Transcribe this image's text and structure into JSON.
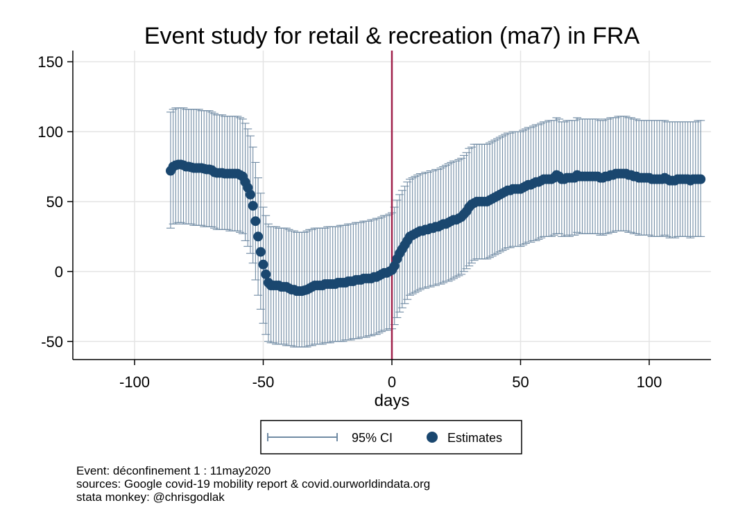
{
  "chart_data": {
    "type": "scatter",
    "title": "Event study for retail & recreation (ma7) in FRA",
    "xlabel": "days",
    "ylabel": "",
    "xlim": [
      -124,
      124
    ],
    "ylim": [
      -63,
      158
    ],
    "xticks": [
      -100,
      -50,
      0,
      50,
      100
    ],
    "yticks": [
      -50,
      0,
      50,
      100,
      150
    ],
    "xtick_labels": [
      "-100",
      "-50",
      "0",
      "50",
      "100"
    ],
    "ytick_labels": [
      "-50",
      "0",
      "50",
      "100",
      "150"
    ],
    "grid": true,
    "event_line_x": 0,
    "legend_position": "bottom",
    "colors": {
      "estimates": "#1a476f",
      "ci": "#6f8aa3",
      "event_line": "#a0204a",
      "grid": "#e4e4e4"
    },
    "series": [
      {
        "name": "95% CI",
        "type": "rcap"
      },
      {
        "name": "Estimates",
        "type": "scatter"
      }
    ],
    "points": [
      {
        "x": -86,
        "y": 72,
        "lo": 31,
        "hi": 114
      },
      {
        "x": -85,
        "y": 75,
        "lo": 34,
        "hi": 116
      },
      {
        "x": -84,
        "y": 76,
        "lo": 34,
        "hi": 117
      },
      {
        "x": -83,
        "y": 76.5,
        "lo": 35,
        "hi": 117
      },
      {
        "x": -82,
        "y": 76.5,
        "lo": 35,
        "hi": 117
      },
      {
        "x": -81,
        "y": 76,
        "lo": 34,
        "hi": 117
      },
      {
        "x": -80,
        "y": 75,
        "lo": 34,
        "hi": 116
      },
      {
        "x": -79,
        "y": 75,
        "lo": 34,
        "hi": 116
      },
      {
        "x": -78,
        "y": 74.5,
        "lo": 34,
        "hi": 116
      },
      {
        "x": -77,
        "y": 74,
        "lo": 33,
        "hi": 116
      },
      {
        "x": -76,
        "y": 74,
        "lo": 33,
        "hi": 116
      },
      {
        "x": -75,
        "y": 74,
        "lo": 33,
        "hi": 116
      },
      {
        "x": -74,
        "y": 74,
        "lo": 33,
        "hi": 115
      },
      {
        "x": -73,
        "y": 73.5,
        "lo": 32,
        "hi": 115
      },
      {
        "x": -72,
        "y": 73,
        "lo": 32,
        "hi": 115
      },
      {
        "x": -71,
        "y": 73,
        "lo": 32,
        "hi": 115
      },
      {
        "x": -70,
        "y": 72.5,
        "lo": 32,
        "hi": 114
      },
      {
        "x": -69,
        "y": 71,
        "lo": 31,
        "hi": 113
      },
      {
        "x": -68,
        "y": 70.5,
        "lo": 30,
        "hi": 112
      },
      {
        "x": -67,
        "y": 70.5,
        "lo": 30,
        "hi": 112
      },
      {
        "x": -66,
        "y": 70.5,
        "lo": 30,
        "hi": 112
      },
      {
        "x": -65,
        "y": 70,
        "lo": 30,
        "hi": 111
      },
      {
        "x": -64,
        "y": 70,
        "lo": 30,
        "hi": 111
      },
      {
        "x": -63,
        "y": 70,
        "lo": 29,
        "hi": 111
      },
      {
        "x": -62,
        "y": 70,
        "lo": 29,
        "hi": 111
      },
      {
        "x": -61,
        "y": 70,
        "lo": 29,
        "hi": 111
      },
      {
        "x": -60,
        "y": 70,
        "lo": 29,
        "hi": 111
      },
      {
        "x": -59,
        "y": 69,
        "lo": 28,
        "hi": 110
      },
      {
        "x": -58,
        "y": 68,
        "lo": 27,
        "hi": 109
      },
      {
        "x": -57,
        "y": 64,
        "lo": 22,
        "hi": 106
      },
      {
        "x": -56,
        "y": 60,
        "lo": 18,
        "hi": 102
      },
      {
        "x": -55,
        "y": 55,
        "lo": 13,
        "hi": 97
      },
      {
        "x": -54,
        "y": 47,
        "lo": 6,
        "hi": 89
      },
      {
        "x": -53,
        "y": 36,
        "lo": -6,
        "hi": 78
      },
      {
        "x": -52,
        "y": 25,
        "lo": -17,
        "hi": 67
      },
      {
        "x": -51,
        "y": 14,
        "lo": -27,
        "hi": 56
      },
      {
        "x": -50,
        "y": 5,
        "lo": -37,
        "hi": 46
      },
      {
        "x": -49,
        "y": -2,
        "lo": -45,
        "hi": 40
      },
      {
        "x": -48,
        "y": -8,
        "lo": -50,
        "hi": 34
      },
      {
        "x": -47,
        "y": -10,
        "lo": -51,
        "hi": 32
      },
      {
        "x": -46,
        "y": -10,
        "lo": -51,
        "hi": 32
      },
      {
        "x": -45,
        "y": -10,
        "lo": -52,
        "hi": 32
      },
      {
        "x": -44,
        "y": -10,
        "lo": -52,
        "hi": 31
      },
      {
        "x": -43,
        "y": -11,
        "lo": -52,
        "hi": 31
      },
      {
        "x": -42,
        "y": -11,
        "lo": -52,
        "hi": 31
      },
      {
        "x": -41,
        "y": -11,
        "lo": -53,
        "hi": 31
      },
      {
        "x": -40,
        "y": -12,
        "lo": -53,
        "hi": 30
      },
      {
        "x": -39,
        "y": -13,
        "lo": -53,
        "hi": 29
      },
      {
        "x": -38,
        "y": -13,
        "lo": -54,
        "hi": 29
      },
      {
        "x": -37,
        "y": -14,
        "lo": -54,
        "hi": 28
      },
      {
        "x": -36,
        "y": -14,
        "lo": -54,
        "hi": 28
      },
      {
        "x": -35,
        "y": -14,
        "lo": -54,
        "hi": 28
      },
      {
        "x": -34,
        "y": -13.5,
        "lo": -54,
        "hi": 28
      },
      {
        "x": -33,
        "y": -13,
        "lo": -54,
        "hi": 29
      },
      {
        "x": -32,
        "y": -12,
        "lo": -53,
        "hi": 30
      },
      {
        "x": -31,
        "y": -11,
        "lo": -53,
        "hi": 30
      },
      {
        "x": -30,
        "y": -10,
        "lo": -52,
        "hi": 31
      },
      {
        "x": -29,
        "y": -10,
        "lo": -52,
        "hi": 31
      },
      {
        "x": -28,
        "y": -10,
        "lo": -52,
        "hi": 31
      },
      {
        "x": -27,
        "y": -10,
        "lo": -52,
        "hi": 31
      },
      {
        "x": -26,
        "y": -9,
        "lo": -51,
        "hi": 31
      },
      {
        "x": -25,
        "y": -9,
        "lo": -51,
        "hi": 32
      },
      {
        "x": -24,
        "y": -9,
        "lo": -51,
        "hi": 32
      },
      {
        "x": -23,
        "y": -9,
        "lo": -50,
        "hi": 32
      },
      {
        "x": -22,
        "y": -9,
        "lo": -50,
        "hi": 32
      },
      {
        "x": -21,
        "y": -8,
        "lo": -50,
        "hi": 32
      },
      {
        "x": -20,
        "y": -8,
        "lo": -50,
        "hi": 33
      },
      {
        "x": -19,
        "y": -8,
        "lo": -50,
        "hi": 33
      },
      {
        "x": -18,
        "y": -8,
        "lo": -49,
        "hi": 33
      },
      {
        "x": -17,
        "y": -7,
        "lo": -49,
        "hi": 34
      },
      {
        "x": -16,
        "y": -7,
        "lo": -49,
        "hi": 34
      },
      {
        "x": -15,
        "y": -7,
        "lo": -48,
        "hi": 34
      },
      {
        "x": -14,
        "y": -6,
        "lo": -48,
        "hi": 35
      },
      {
        "x": -13,
        "y": -6,
        "lo": -48,
        "hi": 35
      },
      {
        "x": -12,
        "y": -6,
        "lo": -47,
        "hi": 35
      },
      {
        "x": -11,
        "y": -5,
        "lo": -47,
        "hi": 36
      },
      {
        "x": -10,
        "y": -5,
        "lo": -47,
        "hi": 36
      },
      {
        "x": -9,
        "y": -5,
        "lo": -46,
        "hi": 36
      },
      {
        "x": -8,
        "y": -5,
        "lo": -46,
        "hi": 37
      },
      {
        "x": -7,
        "y": -4,
        "lo": -45,
        "hi": 37
      },
      {
        "x": -6,
        "y": -4,
        "lo": -45,
        "hi": 38
      },
      {
        "x": -5,
        "y": -3,
        "lo": -44,
        "hi": 38
      },
      {
        "x": -4,
        "y": -2,
        "lo": -43,
        "hi": 39
      },
      {
        "x": -3,
        "y": -1,
        "lo": -42,
        "hi": 40
      },
      {
        "x": -2,
        "y": -1,
        "lo": -42,
        "hi": 40
      },
      {
        "x": -1,
        "y": 0,
        "lo": -41,
        "hi": 41
      },
      {
        "x": 0,
        "y": 1,
        "lo": -41,
        "hi": 42
      },
      {
        "x": 1,
        "y": 4,
        "lo": -38,
        "hi": 46
      },
      {
        "x": 2,
        "y": 9,
        "lo": -33,
        "hi": 51
      },
      {
        "x": 3,
        "y": 13,
        "lo": -29,
        "hi": 55
      },
      {
        "x": 4,
        "y": 16,
        "lo": -26,
        "hi": 58
      },
      {
        "x": 5,
        "y": 19,
        "lo": -23,
        "hi": 61
      },
      {
        "x": 6,
        "y": 22,
        "lo": -20,
        "hi": 64
      },
      {
        "x": 7,
        "y": 25,
        "lo": -17,
        "hi": 66
      },
      {
        "x": 8,
        "y": 26,
        "lo": -16,
        "hi": 67
      },
      {
        "x": 9,
        "y": 27,
        "lo": -15,
        "hi": 68
      },
      {
        "x": 10,
        "y": 28,
        "lo": -14,
        "hi": 69
      },
      {
        "x": 11,
        "y": 29,
        "lo": -13,
        "hi": 70
      },
      {
        "x": 12,
        "y": 29,
        "lo": -12,
        "hi": 70
      },
      {
        "x": 13,
        "y": 30,
        "lo": -12,
        "hi": 71
      },
      {
        "x": 14,
        "y": 30,
        "lo": -11,
        "hi": 71
      },
      {
        "x": 15,
        "y": 31,
        "lo": -11,
        "hi": 72
      },
      {
        "x": 16,
        "y": 31,
        "lo": -10,
        "hi": 72
      },
      {
        "x": 17,
        "y": 32,
        "lo": -10,
        "hi": 73
      },
      {
        "x": 18,
        "y": 32,
        "lo": -9,
        "hi": 73
      },
      {
        "x": 19,
        "y": 33,
        "lo": -9,
        "hi": 74
      },
      {
        "x": 20,
        "y": 34,
        "lo": -8,
        "hi": 75
      },
      {
        "x": 21,
        "y": 34,
        "lo": -7,
        "hi": 76
      },
      {
        "x": 22,
        "y": 35,
        "lo": -7,
        "hi": 77
      },
      {
        "x": 23,
        "y": 36,
        "lo": -6,
        "hi": 78
      },
      {
        "x": 24,
        "y": 37,
        "lo": -5,
        "hi": 79
      },
      {
        "x": 25,
        "y": 37,
        "lo": -4,
        "hi": 79
      },
      {
        "x": 26,
        "y": 38,
        "lo": -3,
        "hi": 80
      },
      {
        "x": 27,
        "y": 39,
        "lo": -2,
        "hi": 81
      },
      {
        "x": 28,
        "y": 41,
        "lo": 0,
        "hi": 83
      },
      {
        "x": 29,
        "y": 43,
        "lo": 2,
        "hi": 85
      },
      {
        "x": 30,
        "y": 46,
        "lo": 4,
        "hi": 88
      },
      {
        "x": 31,
        "y": 48,
        "lo": 6,
        "hi": 89
      },
      {
        "x": 32,
        "y": 49,
        "lo": 8,
        "hi": 91
      },
      {
        "x": 33,
        "y": 50,
        "lo": 9,
        "hi": 91
      },
      {
        "x": 34,
        "y": 50,
        "lo": 9,
        "hi": 91
      },
      {
        "x": 35,
        "y": 50,
        "lo": 9,
        "hi": 91
      },
      {
        "x": 36,
        "y": 50,
        "lo": 9,
        "hi": 91
      },
      {
        "x": 37,
        "y": 50,
        "lo": 9,
        "hi": 91
      },
      {
        "x": 38,
        "y": 51,
        "lo": 10,
        "hi": 92
      },
      {
        "x": 39,
        "y": 52,
        "lo": 11,
        "hi": 93
      },
      {
        "x": 40,
        "y": 53,
        "lo": 12,
        "hi": 94
      },
      {
        "x": 41,
        "y": 54,
        "lo": 13,
        "hi": 95
      },
      {
        "x": 42,
        "y": 55,
        "lo": 14,
        "hi": 96
      },
      {
        "x": 43,
        "y": 56,
        "lo": 15,
        "hi": 97
      },
      {
        "x": 44,
        "y": 57,
        "lo": 16,
        "hi": 98
      },
      {
        "x": 45,
        "y": 58,
        "lo": 17,
        "hi": 99
      },
      {
        "x": 46,
        "y": 58,
        "lo": 17,
        "hi": 99
      },
      {
        "x": 47,
        "y": 59,
        "lo": 18,
        "hi": 100
      },
      {
        "x": 48,
        "y": 59,
        "lo": 18,
        "hi": 100
      },
      {
        "x": 49,
        "y": 59,
        "lo": 18,
        "hi": 100
      },
      {
        "x": 50,
        "y": 59,
        "lo": 18,
        "hi": 100
      },
      {
        "x": 51,
        "y": 60,
        "lo": 19,
        "hi": 101
      },
      {
        "x": 52,
        "y": 61,
        "lo": 20,
        "hi": 102
      },
      {
        "x": 53,
        "y": 62,
        "lo": 21,
        "hi": 103
      },
      {
        "x": 54,
        "y": 62,
        "lo": 21,
        "hi": 103
      },
      {
        "x": 55,
        "y": 63,
        "lo": 22,
        "hi": 104
      },
      {
        "x": 56,
        "y": 64,
        "lo": 22,
        "hi": 105
      },
      {
        "x": 57,
        "y": 64,
        "lo": 23,
        "hi": 105
      },
      {
        "x": 58,
        "y": 65,
        "lo": 24,
        "hi": 106
      },
      {
        "x": 59,
        "y": 66,
        "lo": 25,
        "hi": 107
      },
      {
        "x": 60,
        "y": 66,
        "lo": 25,
        "hi": 107
      },
      {
        "x": 61,
        "y": 66,
        "lo": 25,
        "hi": 108
      },
      {
        "x": 62,
        "y": 66,
        "lo": 25,
        "hi": 108
      },
      {
        "x": 63,
        "y": 67,
        "lo": 26,
        "hi": 108
      },
      {
        "x": 64,
        "y": 69,
        "lo": 27,
        "hi": 110
      },
      {
        "x": 65,
        "y": 68,
        "lo": 27,
        "hi": 109
      },
      {
        "x": 66,
        "y": 66,
        "lo": 25,
        "hi": 107
      },
      {
        "x": 67,
        "y": 66,
        "lo": 25,
        "hi": 107
      },
      {
        "x": 68,
        "y": 67,
        "lo": 26,
        "hi": 108
      },
      {
        "x": 69,
        "y": 67,
        "lo": 25,
        "hi": 108
      },
      {
        "x": 70,
        "y": 67,
        "lo": 26,
        "hi": 108
      },
      {
        "x": 71,
        "y": 67,
        "lo": 26,
        "hi": 108
      },
      {
        "x": 72,
        "y": 69,
        "lo": 28,
        "hi": 110
      },
      {
        "x": 73,
        "y": 68,
        "lo": 27,
        "hi": 109
      },
      {
        "x": 74,
        "y": 68,
        "lo": 27,
        "hi": 109
      },
      {
        "x": 75,
        "y": 68,
        "lo": 27,
        "hi": 109
      },
      {
        "x": 76,
        "y": 68,
        "lo": 27,
        "hi": 109
      },
      {
        "x": 77,
        "y": 68,
        "lo": 27,
        "hi": 109
      },
      {
        "x": 78,
        "y": 68,
        "lo": 27,
        "hi": 109
      },
      {
        "x": 79,
        "y": 68,
        "lo": 27,
        "hi": 109
      },
      {
        "x": 80,
        "y": 68,
        "lo": 27,
        "hi": 109
      },
      {
        "x": 81,
        "y": 67,
        "lo": 26,
        "hi": 108
      },
      {
        "x": 82,
        "y": 67,
        "lo": 26,
        "hi": 108
      },
      {
        "x": 83,
        "y": 68,
        "lo": 27,
        "hi": 109
      },
      {
        "x": 84,
        "y": 68,
        "lo": 27,
        "hi": 109
      },
      {
        "x": 85,
        "y": 69,
        "lo": 28,
        "hi": 110
      },
      {
        "x": 86,
        "y": 69,
        "lo": 28,
        "hi": 110
      },
      {
        "x": 87,
        "y": 70,
        "lo": 29,
        "hi": 110
      },
      {
        "x": 88,
        "y": 70,
        "lo": 29,
        "hi": 111
      },
      {
        "x": 89,
        "y": 70,
        "lo": 29,
        "hi": 111
      },
      {
        "x": 90,
        "y": 70,
        "lo": 29,
        "hi": 111
      },
      {
        "x": 91,
        "y": 70,
        "lo": 29,
        "hi": 111
      },
      {
        "x": 92,
        "y": 69,
        "lo": 28,
        "hi": 110
      },
      {
        "x": 93,
        "y": 69,
        "lo": 28,
        "hi": 110
      },
      {
        "x": 94,
        "y": 68,
        "lo": 27,
        "hi": 109
      },
      {
        "x": 95,
        "y": 68,
        "lo": 27,
        "hi": 109
      },
      {
        "x": 96,
        "y": 67,
        "lo": 26,
        "hi": 108
      },
      {
        "x": 97,
        "y": 67,
        "lo": 26,
        "hi": 108
      },
      {
        "x": 98,
        "y": 67,
        "lo": 26,
        "hi": 108
      },
      {
        "x": 99,
        "y": 67,
        "lo": 26,
        "hi": 108
      },
      {
        "x": 100,
        "y": 67,
        "lo": 26,
        "hi": 108
      },
      {
        "x": 101,
        "y": 66,
        "lo": 25,
        "hi": 108
      },
      {
        "x": 102,
        "y": 66,
        "lo": 25,
        "hi": 108
      },
      {
        "x": 103,
        "y": 66,
        "lo": 25,
        "hi": 108
      },
      {
        "x": 104,
        "y": 66,
        "lo": 25,
        "hi": 108
      },
      {
        "x": 105,
        "y": 66,
        "lo": 25,
        "hi": 108
      },
      {
        "x": 106,
        "y": 67,
        "lo": 26,
        "hi": 108
      },
      {
        "x": 107,
        "y": 66,
        "lo": 25,
        "hi": 107
      },
      {
        "x": 108,
        "y": 65,
        "lo": 24,
        "hi": 107
      },
      {
        "x": 109,
        "y": 65,
        "lo": 24,
        "hi": 107
      },
      {
        "x": 110,
        "y": 65,
        "lo": 24,
        "hi": 107
      },
      {
        "x": 111,
        "y": 66,
        "lo": 25,
        "hi": 107
      },
      {
        "x": 112,
        "y": 66,
        "lo": 25,
        "hi": 107
      },
      {
        "x": 113,
        "y": 66,
        "lo": 25,
        "hi": 107
      },
      {
        "x": 114,
        "y": 66,
        "lo": 25,
        "hi": 107
      },
      {
        "x": 115,
        "y": 66,
        "lo": 25,
        "hi": 107
      },
      {
        "x": 116,
        "y": 65,
        "lo": 24,
        "hi": 107
      },
      {
        "x": 117,
        "y": 66,
        "lo": 25,
        "hi": 107
      },
      {
        "x": 118,
        "y": 66,
        "lo": 25,
        "hi": 107
      },
      {
        "x": 119,
        "y": 66,
        "lo": 25,
        "hi": 108
      },
      {
        "x": 120,
        "y": 66,
        "lo": 25,
        "hi": 108
      }
    ]
  },
  "notes": [
    "Event: déconfinement 1 : 11may2020",
    "sources: Google covid-19 mobility report & covid.ourworldindata.org",
    "stata monkey: @chrisgodlak"
  ]
}
